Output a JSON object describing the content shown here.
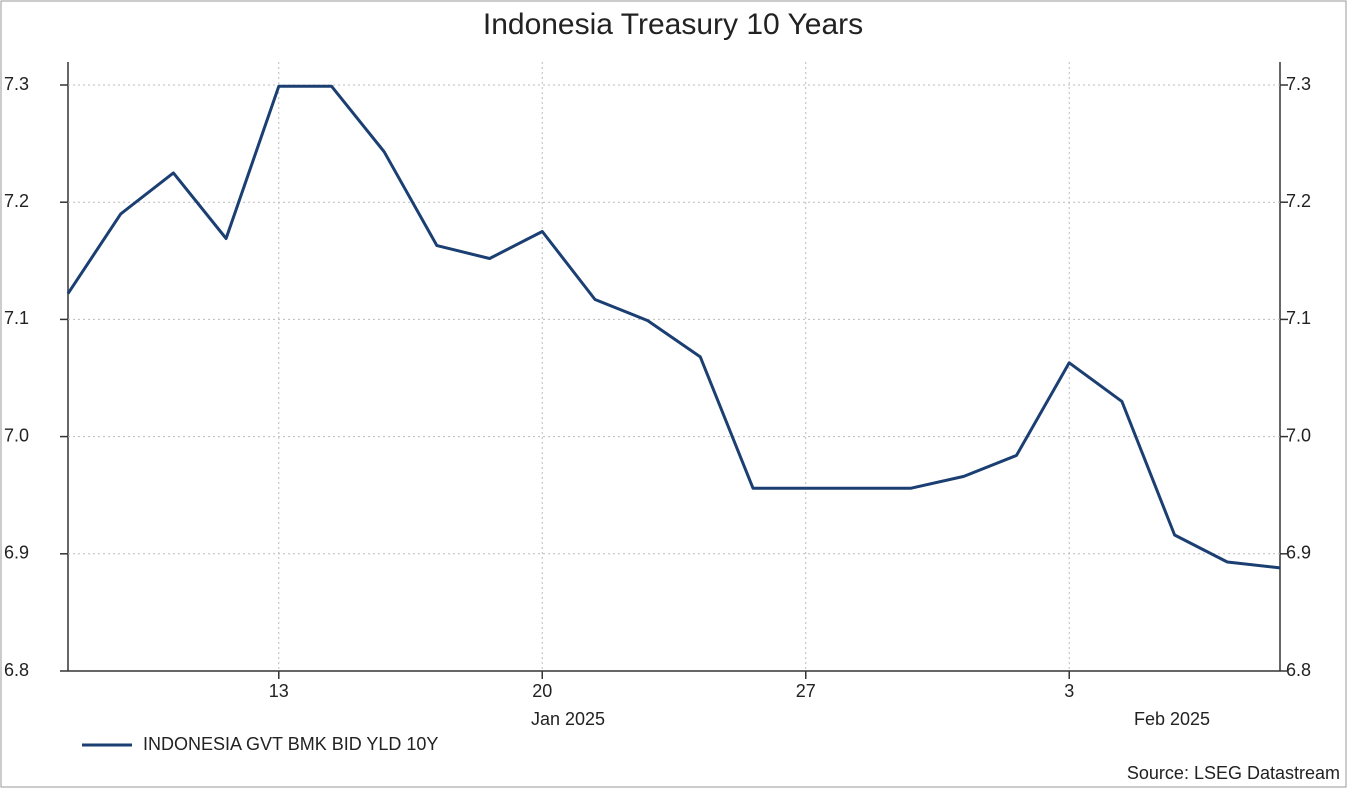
{
  "chart_data": {
    "type": "line",
    "title": "Indonesia Treasury 10 Years",
    "source": "Source: LSEG Datastream",
    "categories": [
      null,
      null,
      null,
      null,
      "13",
      null,
      null,
      null,
      null,
      "20",
      null,
      null,
      null,
      null,
      "27",
      null,
      null,
      null,
      null,
      "3",
      null,
      null,
      null,
      null
    ],
    "period_labels": [
      "Jan 2025",
      "Feb 2025"
    ],
    "series": [
      {
        "name": "INDONESIA GVT BMK BID YLD 10Y",
        "color": "#1b3f72",
        "values": [
          7.122,
          7.19,
          7.225,
          7.169,
          7.299,
          7.299,
          7.243,
          7.163,
          7.152,
          7.175,
          7.117,
          7.099,
          7.068,
          6.956,
          6.956,
          6.956,
          6.956,
          6.966,
          6.984,
          7.063,
          7.03,
          6.916,
          6.893,
          6.888
        ]
      }
    ],
    "ylim": [
      6.8,
      7.3
    ],
    "yticks": [
      6.8,
      6.9,
      {
        "value": 7,
        "label": "7.0"
      },
      7.1,
      7.2,
      7.3
    ],
    "grid": true,
    "right_axis_labels": true
  }
}
